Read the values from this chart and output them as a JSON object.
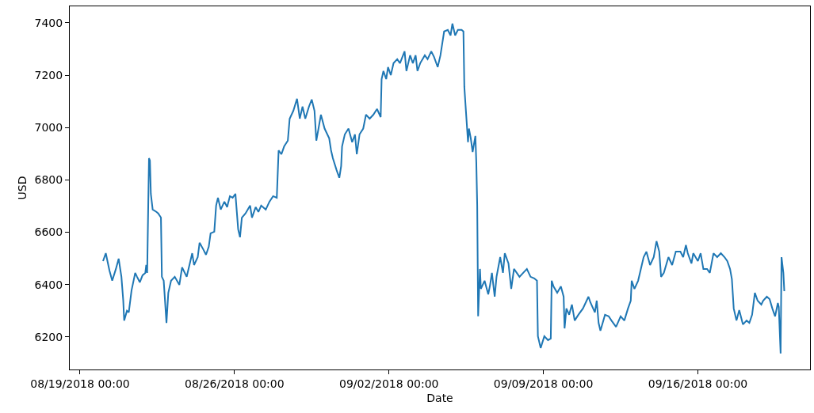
{
  "chart_data": {
    "type": "line",
    "xlabel": "Date",
    "ylabel": "USD",
    "grid": false,
    "marker": "none",
    "line_style": "solid",
    "xlim": [
      "2018-08-18T12:48",
      "2018-09-21T02:00"
    ],
    "xticks": [
      {
        "value": "2018-08-19",
        "label": "08/19/2018 00:00"
      },
      {
        "value": "2018-08-26",
        "label": "08/26/2018 00:00"
      },
      {
        "value": "2018-09-02",
        "label": "09/02/2018 00:00"
      },
      {
        "value": "2018-09-09",
        "label": "09/09/2018 00:00"
      },
      {
        "value": "2018-09-16",
        "label": "09/16/2018 00:00"
      }
    ],
    "ylim": [
      6076,
      7463
    ],
    "yticks": [
      6200,
      6400,
      6600,
      6800,
      7000,
      7200,
      7400
    ],
    "series": [
      {
        "color": "#1f77b4",
        "x": [
          "2018-08-20T01:00",
          "2018-08-20T04:00",
          "2018-08-20T08:00",
          "2018-08-20T11:00",
          "2018-08-20T15:00",
          "2018-08-20T18:00",
          "2018-08-20T21:00",
          "2018-08-20T23:00",
          "2018-08-21T00:00",
          "2018-08-21T03:00",
          "2018-08-21T05:00",
          "2018-08-21T08:00",
          "2018-08-21T12:00",
          "2018-08-21T14:00",
          "2018-08-21T17:00",
          "2018-08-21T20:00",
          "2018-08-21T23:00",
          "2018-08-22T00:00",
          "2018-08-22T01:00",
          "2018-08-22T03:00",
          "2018-08-22T04:00",
          "2018-08-22T05:00",
          "2018-08-22T07:00",
          "2018-08-22T11:00",
          "2018-08-22T13:00",
          "2018-08-22T16:00",
          "2018-08-22T17:00",
          "2018-08-22T19:00",
          "2018-08-22T22:00",
          "2018-08-23T00:00",
          "2018-08-23T03:00",
          "2018-08-23T07:00",
          "2018-08-23T12:00",
          "2018-08-23T15:00",
          "2018-08-23T20:00",
          "2018-08-24T00:00",
          "2018-08-24T02:00",
          "2018-08-24T04:00",
          "2018-08-24T08:00",
          "2018-08-24T10:00",
          "2018-08-24T14:00",
          "2018-08-24T17:00",
          "2018-08-24T20:00",
          "2018-08-24T22:00",
          "2018-08-25T02:00",
          "2018-08-25T04:00",
          "2018-08-25T06:00",
          "2018-08-25T09:00",
          "2018-08-25T13:00",
          "2018-08-25T16:00",
          "2018-08-25T17:00",
          "2018-08-25T19:00",
          "2018-08-25T22:00",
          "2018-08-26T01:00",
          "2018-08-26T04:00",
          "2018-08-26T06:00",
          "2018-08-26T08:00",
          "2018-08-26T12:00",
          "2018-08-26T17:00",
          "2018-08-26T19:00",
          "2018-08-26T23:00",
          "2018-08-27T02:00",
          "2018-08-27T05:00",
          "2018-08-27T10:00",
          "2018-08-27T14:00",
          "2018-08-27T18:00",
          "2018-08-27T22:00",
          "2018-08-28T00:00",
          "2018-08-28T03:00",
          "2018-08-28T06:00",
          "2018-08-28T10:00",
          "2018-08-28T12:00",
          "2018-08-28T16:00",
          "2018-08-28T20:00",
          "2018-08-28T23:00",
          "2018-08-29T02:00",
          "2018-08-29T05:00",
          "2018-08-29T09:00",
          "2018-08-29T12:00",
          "2018-08-29T15:00",
          "2018-08-29T17:00",
          "2018-08-29T19:00",
          "2018-08-29T22:00",
          "2018-08-30T02:00",
          "2018-08-30T07:00",
          "2018-08-30T09:00",
          "2018-08-30T11:00",
          "2018-08-30T15:00",
          "2018-08-30T18:00",
          "2018-08-30T20:00",
          "2018-08-30T21:00",
          "2018-08-31T00:00",
          "2018-08-31T04:00",
          "2018-08-31T08:00",
          "2018-08-31T11:00",
          "2018-08-31T13:00",
          "2018-08-31T16:00",
          "2018-08-31T20:00",
          "2018-08-31T23:00",
          "2018-09-01T03:00",
          "2018-09-01T07:00",
          "2018-09-01T11:00",
          "2018-09-01T15:00",
          "2018-09-01T16:00",
          "2018-09-01T18:00",
          "2018-09-01T21:00",
          "2018-09-01T23:00",
          "2018-09-02T02:00",
          "2018-09-02T05:00",
          "2018-09-02T09:00",
          "2018-09-02T12:00",
          "2018-09-02T17:00",
          "2018-09-02T19:00",
          "2018-09-02T23:00",
          "2018-09-03T02:00",
          "2018-09-03T05:00",
          "2018-09-03T07:00",
          "2018-09-03T10:00",
          "2018-09-03T15:00",
          "2018-09-03T18:00",
          "2018-09-03T22:00",
          "2018-09-04T01:00",
          "2018-09-04T05:00",
          "2018-09-04T08:00",
          "2018-09-04T12:00",
          "2018-09-04T16:00",
          "2018-09-04T19:00",
          "2018-09-04T21:00",
          "2018-09-05T00:00",
          "2018-09-05T03:00",
          "2018-09-05T07:00",
          "2018-09-05T09:00",
          "2018-09-05T10:00",
          "2018-09-05T11:00",
          "2018-09-05T14:00",
          "2018-09-05T15:00",
          "2018-09-05T17:00",
          "2018-09-05T19:00",
          "2018-09-05T22:00",
          "2018-09-05T23:00",
          "2018-09-06T00:00",
          "2018-09-06T01:00",
          "2018-09-06T03:00",
          "2018-09-06T04:00",
          "2018-09-06T08:00",
          "2018-09-06T12:00",
          "2018-09-06T14:00",
          "2018-09-06T16:00",
          "2018-09-06T19:00",
          "2018-09-06T21:00",
          "2018-09-07T01:00",
          "2018-09-07T04:00",
          "2018-09-07T06:00",
          "2018-09-07T10:00",
          "2018-09-07T13:00",
          "2018-09-07T16:00",
          "2018-09-07T22:00",
          "2018-09-08T02:00",
          "2018-09-08T06:00",
          "2018-09-08T10:00",
          "2018-09-08T14:00",
          "2018-09-08T17:00",
          "2018-09-08T18:00",
          "2018-09-08T21:00",
          "2018-09-09T01:00",
          "2018-09-09T05:00",
          "2018-09-09T08:00",
          "2018-09-09T09:00",
          "2018-09-09T11:00",
          "2018-09-09T15:00",
          "2018-09-09T19:00",
          "2018-09-09T22:00",
          "2018-09-09T23:00",
          "2018-09-10T01:00",
          "2018-09-10T04:00",
          "2018-09-10T07:00",
          "2018-09-10T10:00",
          "2018-09-10T14:00",
          "2018-09-10T19:00",
          "2018-09-11T01:00",
          "2018-09-11T03:00",
          "2018-09-11T08:00",
          "2018-09-11T10:00",
          "2018-09-11T12:00",
          "2018-09-11T14:00",
          "2018-09-11T19:00",
          "2018-09-11T23:00",
          "2018-09-12T02:00",
          "2018-09-12T07:00",
          "2018-09-12T12:00",
          "2018-09-12T16:00",
          "2018-09-12T20:00",
          "2018-09-12T23:00",
          "2018-09-13T00:00",
          "2018-09-13T03:00",
          "2018-09-13T07:00",
          "2018-09-13T10:00",
          "2018-09-13T13:00",
          "2018-09-13T16:00",
          "2018-09-13T20:00",
          "2018-09-14T00:00",
          "2018-09-14T03:00",
          "2018-09-14T06:00",
          "2018-09-14T08:00",
          "2018-09-14T11:00",
          "2018-09-14T16:00",
          "2018-09-14T20:00",
          "2018-09-15T00:00",
          "2018-09-15T05:00",
          "2018-09-15T08:00",
          "2018-09-15T11:00",
          "2018-09-15T13:00",
          "2018-09-15T17:00",
          "2018-09-15T19:00",
          "2018-09-16T00:00",
          "2018-09-16T03:00",
          "2018-09-16T06:00",
          "2018-09-16T10:00",
          "2018-09-16T13:00",
          "2018-09-16T17:00",
          "2018-09-16T21:00",
          "2018-09-17T01:00",
          "2018-09-17T05:00",
          "2018-09-17T08:00",
          "2018-09-17T11:00",
          "2018-09-17T13:00",
          "2018-09-17T15:00",
          "2018-09-17T18:00",
          "2018-09-17T21:00",
          "2018-09-18T01:00",
          "2018-09-18T05:00",
          "2018-09-18T08:00",
          "2018-09-18T11:00",
          "2018-09-18T14:00",
          "2018-09-18T17:00",
          "2018-09-18T21:00",
          "2018-09-18T23:00",
          "2018-09-19T03:00",
          "2018-09-19T06:00",
          "2018-09-19T09:00",
          "2018-09-19T12:00",
          "2018-09-19T15:00",
          "2018-09-19T16:00",
          "2018-09-19T18:00",
          "2018-09-19T19:00",
          "2018-09-19T21:00",
          "2018-09-19T22:00"
        ],
        "values": [
          6490,
          6520,
          6454,
          6415,
          6460,
          6499,
          6430,
          6339,
          6263,
          6300,
          6294,
          6378,
          6445,
          6430,
          6409,
          6436,
          6445,
          6475,
          6445,
          6883,
          6874,
          6747,
          6687,
          6678,
          6672,
          6656,
          6430,
          6415,
          6254,
          6369,
          6415,
          6430,
          6399,
          6466,
          6430,
          6490,
          6520,
          6475,
          6505,
          6560,
          6535,
          6514,
          6545,
          6596,
          6602,
          6702,
          6732,
          6687,
          6717,
          6696,
          6711,
          6738,
          6732,
          6747,
          6611,
          6581,
          6656,
          6672,
          6702,
          6656,
          6696,
          6678,
          6702,
          6687,
          6717,
          6738,
          6732,
          6913,
          6898,
          6928,
          6950,
          7034,
          7064,
          7110,
          7034,
          7080,
          7034,
          7080,
          7107,
          7064,
          6950,
          6989,
          7049,
          6996,
          6959,
          6913,
          6883,
          6838,
          6808,
          6853,
          6928,
          6974,
          6996,
          6944,
          6974,
          6898,
          6974,
          6996,
          7049,
          7034,
          7049,
          7071,
          7040,
          7185,
          7216,
          7185,
          7231,
          7200,
          7246,
          7261,
          7246,
          7291,
          7216,
          7276,
          7246,
          7276,
          7216,
          7246,
          7276,
          7261,
          7291,
          7270,
          7231,
          7276,
          7367,
          7373,
          7352,
          7397,
          7352,
          7373,
          7373,
          7367,
          7155,
          7101,
          6944,
          6996,
          6959,
          6907,
          6968,
          6868,
          6702,
          6279,
          6460,
          6384,
          6415,
          6363,
          6399,
          6445,
          6354,
          6430,
          6505,
          6445,
          6520,
          6481,
          6384,
          6460,
          6430,
          6445,
          6460,
          6430,
          6424,
          6415,
          6203,
          6158,
          6203,
          6188,
          6194,
          6415,
          6393,
          6369,
          6393,
          6354,
          6233,
          6309,
          6285,
          6324,
          6263,
          6285,
          6309,
          6354,
          6333,
          6294,
          6339,
          6254,
          6224,
          6285,
          6279,
          6263,
          6239,
          6279,
          6263,
          6309,
          6339,
          6415,
          6384,
          6415,
          6460,
          6505,
          6526,
          6475,
          6505,
          6566,
          6526,
          6430,
          6445,
          6505,
          6475,
          6526,
          6526,
          6505,
          6551,
          6520,
          6481,
          6520,
          6490,
          6520,
          6460,
          6460,
          6445,
          6520,
          6505,
          6520,
          6505,
          6490,
          6460,
          6421,
          6309,
          6263,
          6303,
          6248,
          6263,
          6254,
          6285,
          6369,
          6339,
          6324,
          6339,
          6354,
          6345,
          6309,
          6279,
          6330,
          6315,
          6137,
          6505,
          6445,
          6375
        ]
      }
    ]
  }
}
